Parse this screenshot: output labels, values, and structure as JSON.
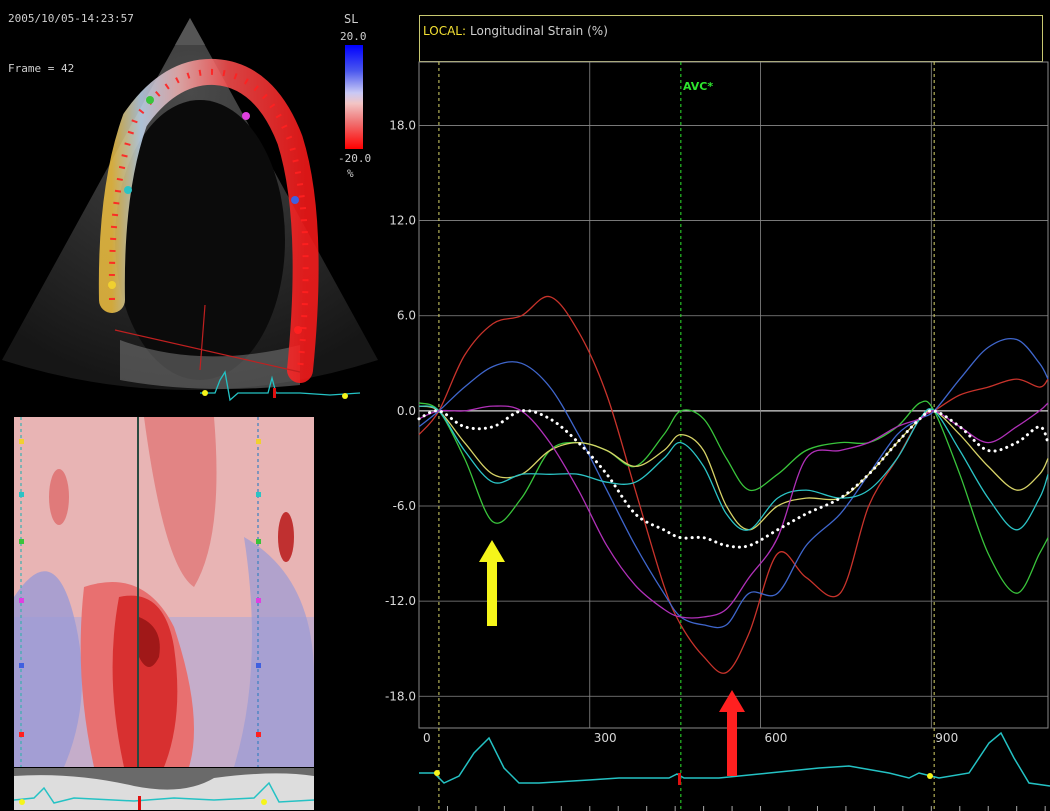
{
  "echo_panel": {
    "timestamp": "2005/10/05-14:23:57",
    "frame_label": "Frame = 42"
  },
  "color_scale": {
    "title": "SL",
    "max": "20.0",
    "min": "-20.0",
    "unit": "%",
    "colors": {
      "top": "#0000ff",
      "mid": "#f0e0e0",
      "bottom": "#ff0000"
    }
  },
  "chart_header": {
    "prefix": "LOCAL:",
    "title": "Longitudinal Strain (%)",
    "border_color": "#c8c870",
    "prefix_color": "#f3e033"
  },
  "markers": {
    "avc_label": "AVC*",
    "avc_color": "#2ee62e",
    "arrow_yellow": "yellow-up-arrow",
    "arrow_red": "red-up-arrow"
  },
  "chart_data": {
    "type": "line",
    "title": "Longitudinal Strain (%)",
    "y_ticks": [
      "18.0",
      "12.0",
      "6.0",
      "0.0",
      "-6.0",
      "-12.0",
      "-18.0"
    ],
    "x_ticks": [
      "0",
      "300",
      "600",
      "900"
    ],
    "xlim": [
      0,
      1105
    ],
    "ylim": [
      -20,
      22
    ],
    "grid": true,
    "markers_x": {
      "AVC": 460,
      "ref_start": 35,
      "ref_end": 905
    },
    "x": [
      0,
      35,
      80,
      130,
      180,
      230,
      280,
      330,
      380,
      430,
      460,
      500,
      540,
      580,
      630,
      680,
      740,
      790,
      840,
      880,
      905,
      950,
      1000,
      1050,
      1090,
      1105
    ],
    "series": [
      {
        "color": "#c8332b",
        "values": [
          -1.5,
          0,
          3.5,
          5.5,
          6,
          7.2,
          5,
          1,
          -5,
          -11,
          -13.5,
          -15.5,
          -16.5,
          -14,
          -9,
          -10.5,
          -11.5,
          -6,
          -3,
          -0.5,
          0,
          1,
          1.5,
          2,
          1.5,
          2
        ]
      },
      {
        "color": "#3f66cc",
        "values": [
          -1,
          0,
          1.5,
          2.8,
          3,
          1.5,
          -1.5,
          -5,
          -8.5,
          -11.5,
          -13,
          -13.5,
          -13.5,
          -11.5,
          -11.5,
          -8.5,
          -6.5,
          -4,
          -1.5,
          -0.5,
          0,
          2,
          4,
          4.5,
          3,
          2
        ]
      },
      {
        "color": "#39c43b",
        "values": [
          0.5,
          0,
          -3,
          -7,
          -5.5,
          -2.5,
          -2,
          -2.5,
          -3.5,
          -1.5,
          0,
          -0.5,
          -3,
          -5,
          -4,
          -2.5,
          -2,
          -2,
          -1,
          0.5,
          0,
          -4,
          -9,
          -11.5,
          -9,
          -8
        ]
      },
      {
        "color": "#d6d267",
        "values": [
          0.3,
          0,
          -2,
          -4,
          -4,
          -2.5,
          -2,
          -2.5,
          -3.5,
          -2.5,
          -1.5,
          -2.5,
          -6,
          -7.5,
          -6,
          -5.5,
          -5.5,
          -4,
          -2,
          -0.5,
          0,
          -1.5,
          -3.5,
          -5,
          -4,
          -3
        ]
      },
      {
        "color": "#2bc3c5",
        "values": [
          0.3,
          0,
          -2.5,
          -4.5,
          -4,
          -4,
          -4,
          -4.5,
          -4.5,
          -3,
          -2,
          -3.5,
          -6.5,
          -7.5,
          -5.5,
          -5,
          -5.5,
          -5,
          -3,
          -0.5,
          0,
          -2.5,
          -5.5,
          -7.5,
          -5.5,
          -4
        ]
      },
      {
        "color": "#b030b8",
        "values": [
          -0.5,
          0,
          0,
          0.3,
          0,
          -2,
          -5,
          -8.5,
          -11,
          -12.5,
          -13,
          -13,
          -12.5,
          -10.5,
          -8,
          -3,
          -2.5,
          -2,
          -1,
          -0.5,
          0,
          -1,
          -2,
          -1,
          0,
          0.5
        ]
      },
      {
        "color": "#ffffff",
        "dotted": true,
        "values": [
          -0.5,
          0,
          -1,
          -1,
          0,
          -0.5,
          -2,
          -4,
          -6.5,
          -7.5,
          -8,
          -8,
          -8.5,
          -8.5,
          -7.5,
          -6.5,
          -5.5,
          -4,
          -2,
          -0.5,
          0,
          -1,
          -2.5,
          -2,
          -1,
          -2
        ]
      }
    ]
  },
  "ecg_trace_color": "#24c2c4"
}
